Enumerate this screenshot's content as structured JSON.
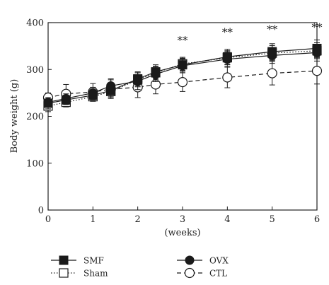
{
  "chart_data": {
    "type": "line",
    "title": "",
    "xlabel": "(weeks)",
    "ylabel": "Body weight (g)",
    "xlim": [
      0,
      6
    ],
    "ylim": [
      0,
      400
    ],
    "xticks": [
      "0",
      "1",
      "2",
      "3",
      "4",
      "5",
      "6"
    ],
    "yticks": [
      "0",
      "100",
      "200",
      "300",
      "400"
    ],
    "grid": false,
    "legend_position": "bottom",
    "series": [
      {
        "name": "SMF",
        "marker": "filled-square",
        "line": "solid",
        "points": [
          {
            "x": 0,
            "y": 228,
            "err": 12
          },
          {
            "x": 0.4,
            "y": 235,
            "err": 10
          },
          {
            "x": 1,
            "y": 245,
            "err": 10
          },
          {
            "x": 1.4,
            "y": 255,
            "err": 12
          },
          {
            "x": 2,
            "y": 280,
            "err": 15
          },
          {
            "x": 2.4,
            "y": 295,
            "err": 15
          },
          {
            "x": 3,
            "y": 310,
            "err": 14
          },
          {
            "x": 4,
            "y": 327,
            "err": 16
          },
          {
            "x": 5,
            "y": 338,
            "err": 17
          },
          {
            "x": 6,
            "y": 345,
            "err": 18
          }
        ]
      },
      {
        "name": "Sham",
        "marker": "open-square",
        "line": "dotted",
        "points": [
          {
            "x": 0,
            "y": 222,
            "err": 12
          },
          {
            "x": 0.4,
            "y": 230,
            "err": 10
          },
          {
            "x": 1,
            "y": 242,
            "err": 10
          },
          {
            "x": 1.4,
            "y": 253,
            "err": 12
          },
          {
            "x": 2,
            "y": 278,
            "err": 15
          },
          {
            "x": 2.4,
            "y": 293,
            "err": 14
          },
          {
            "x": 3,
            "y": 312,
            "err": 14
          },
          {
            "x": 4,
            "y": 325,
            "err": 15
          },
          {
            "x": 5,
            "y": 335,
            "err": 16
          },
          {
            "x": 6,
            "y": 340,
            "err": 17
          }
        ]
      },
      {
        "name": "OVX",
        "marker": "filled-circle",
        "line": "solid",
        "points": [
          {
            "x": 0,
            "y": 230,
            "err": 10
          },
          {
            "x": 0.4,
            "y": 238,
            "err": 10
          },
          {
            "x": 1,
            "y": 250,
            "err": 12
          },
          {
            "x": 1.4,
            "y": 265,
            "err": 15
          },
          {
            "x": 2,
            "y": 275,
            "err": 18
          },
          {
            "x": 2.4,
            "y": 290,
            "err": 16
          },
          {
            "x": 3,
            "y": 308,
            "err": 15
          },
          {
            "x": 4,
            "y": 322,
            "err": 16
          },
          {
            "x": 5,
            "y": 330,
            "err": 17
          },
          {
            "x": 6,
            "y": 336,
            "err": 18
          }
        ]
      },
      {
        "name": "CTL",
        "marker": "open-circle",
        "line": "dashed",
        "points": [
          {
            "x": 0,
            "y": 240,
            "err": 10
          },
          {
            "x": 0.4,
            "y": 248,
            "err": 20
          },
          {
            "x": 1,
            "y": 252,
            "err": 18
          },
          {
            "x": 1.4,
            "y": 258,
            "err": 20
          },
          {
            "x": 2,
            "y": 262,
            "err": 22
          },
          {
            "x": 2.4,
            "y": 268,
            "err": 20
          },
          {
            "x": 3,
            "y": 273,
            "err": 20
          },
          {
            "x": 4,
            "y": 283,
            "err": 22
          },
          {
            "x": 5,
            "y": 292,
            "err": 25
          },
          {
            "x": 6,
            "y": 297,
            "err": 28
          }
        ]
      }
    ],
    "annotations": [
      {
        "text": "**",
        "x": 3,
        "y": 355
      },
      {
        "text": "**",
        "x": 4,
        "y": 372
      },
      {
        "text": "**",
        "x": 5,
        "y": 378
      },
      {
        "text": "**",
        "x": 6,
        "y": 383
      }
    ]
  },
  "colors": {
    "ink": "#1a1a1a",
    "fill_open": "#ffffff"
  }
}
